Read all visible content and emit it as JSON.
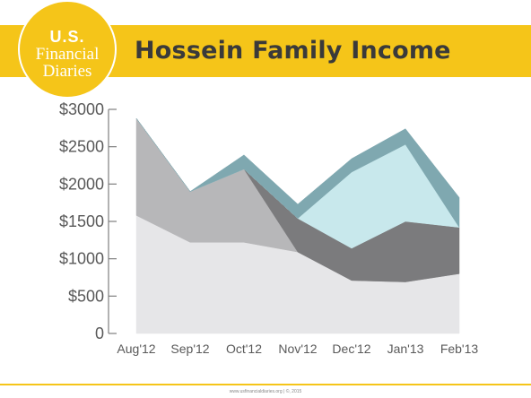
{
  "header": {
    "title": "Hossein Family Income",
    "logo": {
      "line1": "U.S.",
      "line2": "Financial",
      "line3": "Diaries"
    }
  },
  "footer": {
    "text": "www.usfinancialdiaries.org | ©, 2015"
  },
  "colors": {
    "brand_yellow": "#f5c519",
    "series_base": "#e6e6e8",
    "series_gray": "#b7b7b9",
    "series_dark": "#7b7b7d",
    "series_light_teal": "#c8e8ec",
    "series_teal": "#7fa8b0"
  },
  "chart_data": {
    "type": "area",
    "stacked": true,
    "categories": [
      "Aug'12",
      "Sep'12",
      "Oct'12",
      "Nov'12",
      "Dec'12",
      "Jan'13",
      "Feb'13"
    ],
    "ylim": [
      0,
      3000
    ],
    "yticks": [
      0,
      500,
      1000,
      1500,
      2000,
      2500,
      3000
    ],
    "ytick_labels": [
      "0",
      "$500",
      "$1000",
      "$1500",
      "$2000",
      "$2500",
      "$3000"
    ],
    "grid": false,
    "legend": false,
    "series": [
      {
        "values": [
          1580,
          1220,
          1220,
          1090,
          710,
          690,
          800
        ]
      },
      {
        "values": [
          1300,
          680,
          980,
          0,
          0,
          0,
          0
        ]
      },
      {
        "values": [
          0,
          0,
          0,
          450,
          430,
          810,
          620
        ]
      },
      {
        "values": [
          0,
          0,
          0,
          0,
          1020,
          1030,
          0
        ]
      },
      {
        "values": [
          0,
          0,
          190,
          190,
          180,
          210,
          400
        ]
      }
    ]
  }
}
